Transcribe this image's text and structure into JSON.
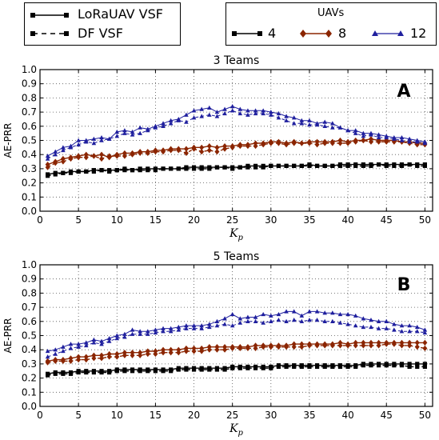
{
  "legend_styles": {
    "entries": [
      {
        "label": "LoRaUAV VSF",
        "dash": "solid"
      },
      {
        "label": "DF VSF",
        "dash": "dashed"
      }
    ]
  },
  "legend_uavs": {
    "title": "UAVs",
    "entries": [
      {
        "label": "4",
        "color": "#000000",
        "marker": "square"
      },
      {
        "label": "8",
        "color": "#8B2500",
        "marker": "diamond"
      },
      {
        "label": "12",
        "color": "#1f1f9e",
        "marker": "triangle"
      }
    ]
  },
  "chart_data": [
    {
      "type": "line",
      "title": "3 Teams",
      "panel_label": "A",
      "xlabel": "K_p",
      "ylabel": "AE-PRR",
      "xlim": [
        0,
        51
      ],
      "ylim": [
        0,
        1.0
      ],
      "xticks": [
        0,
        5,
        10,
        15,
        20,
        25,
        30,
        35,
        40,
        45,
        50
      ],
      "yticks": [
        0.0,
        0.1,
        0.2,
        0.3,
        0.4,
        0.5,
        0.6,
        0.7,
        0.8,
        0.9,
        1.0
      ],
      "grid": true,
      "x": [
        1,
        2,
        3,
        4,
        5,
        6,
        7,
        8,
        9,
        10,
        11,
        12,
        13,
        14,
        15,
        16,
        17,
        18,
        19,
        20,
        21,
        22,
        23,
        24,
        25,
        26,
        27,
        28,
        29,
        30,
        31,
        32,
        33,
        34,
        35,
        36,
        37,
        38,
        39,
        40,
        41,
        42,
        43,
        44,
        45,
        46,
        47,
        48,
        49,
        50
      ],
      "series": [
        {
          "uavs": "4",
          "style": "LoRaUAV VSF",
          "color": "#000000",
          "marker": "square",
          "values": [
            0.26,
            0.27,
            0.27,
            0.28,
            0.28,
            0.28,
            0.29,
            0.29,
            0.29,
            0.29,
            0.3,
            0.29,
            0.3,
            0.3,
            0.3,
            0.3,
            0.3,
            0.3,
            0.31,
            0.31,
            0.31,
            0.31,
            0.31,
            0.31,
            0.31,
            0.31,
            0.32,
            0.32,
            0.32,
            0.32,
            0.32,
            0.32,
            0.32,
            0.32,
            0.33,
            0.32,
            0.32,
            0.32,
            0.33,
            0.33,
            0.33,
            0.33,
            0.33,
            0.33,
            0.33,
            0.33,
            0.33,
            0.33,
            0.33,
            0.33
          ]
        },
        {
          "uavs": "4",
          "style": "DF VSF",
          "color": "#000000",
          "marker": "square",
          "values": [
            0.25,
            0.26,
            0.27,
            0.27,
            0.28,
            0.28,
            0.28,
            0.29,
            0.28,
            0.29,
            0.29,
            0.29,
            0.29,
            0.29,
            0.29,
            0.3,
            0.3,
            0.3,
            0.3,
            0.3,
            0.3,
            0.3,
            0.31,
            0.31,
            0.3,
            0.31,
            0.31,
            0.31,
            0.31,
            0.32,
            0.32,
            0.32,
            0.32,
            0.32,
            0.32,
            0.32,
            0.32,
            0.32,
            0.32,
            0.32,
            0.32,
            0.32,
            0.32,
            0.33,
            0.32,
            0.32,
            0.32,
            0.33,
            0.32,
            0.32
          ]
        },
        {
          "uavs": "8",
          "style": "LoRaUAV VSF",
          "color": "#8B2500",
          "marker": "diamond",
          "values": [
            0.33,
            0.35,
            0.37,
            0.38,
            0.39,
            0.4,
            0.39,
            0.4,
            0.38,
            0.4,
            0.41,
            0.41,
            0.42,
            0.42,
            0.43,
            0.43,
            0.44,
            0.44,
            0.44,
            0.45,
            0.45,
            0.46,
            0.45,
            0.46,
            0.46,
            0.47,
            0.47,
            0.48,
            0.48,
            0.49,
            0.49,
            0.48,
            0.49,
            0.48,
            0.49,
            0.49,
            0.49,
            0.49,
            0.5,
            0.49,
            0.5,
            0.5,
            0.51,
            0.5,
            0.5,
            0.5,
            0.49,
            0.49,
            0.48,
            0.48
          ]
        },
        {
          "uavs": "8",
          "style": "DF VSF",
          "color": "#8B2500",
          "marker": "diamond",
          "values": [
            0.31,
            0.34,
            0.35,
            0.37,
            0.38,
            0.38,
            0.39,
            0.37,
            0.39,
            0.39,
            0.39,
            0.4,
            0.41,
            0.41,
            0.42,
            0.42,
            0.43,
            0.43,
            0.41,
            0.44,
            0.42,
            0.43,
            0.42,
            0.44,
            0.45,
            0.46,
            0.46,
            0.46,
            0.47,
            0.48,
            0.48,
            0.47,
            0.48,
            0.48,
            0.48,
            0.47,
            0.48,
            0.48,
            0.48,
            0.48,
            0.49,
            0.5,
            0.49,
            0.49,
            0.49,
            0.49,
            0.49,
            0.48,
            0.47,
            0.47
          ]
        },
        {
          "uavs": "12",
          "style": "LoRaUAV VSF",
          "color": "#1f1f9e",
          "marker": "triangle",
          "values": [
            0.39,
            0.42,
            0.45,
            0.46,
            0.5,
            0.5,
            0.51,
            0.52,
            0.51,
            0.56,
            0.57,
            0.56,
            0.59,
            0.58,
            0.6,
            0.62,
            0.64,
            0.65,
            0.68,
            0.71,
            0.72,
            0.73,
            0.7,
            0.72,
            0.74,
            0.72,
            0.71,
            0.71,
            0.71,
            0.7,
            0.69,
            0.67,
            0.66,
            0.64,
            0.64,
            0.62,
            0.63,
            0.62,
            0.59,
            0.57,
            0.57,
            0.55,
            0.55,
            0.54,
            0.53,
            0.52,
            0.52,
            0.51,
            0.5,
            0.49
          ]
        },
        {
          "uavs": "12",
          "style": "DF VSF",
          "color": "#1f1f9e",
          "marker": "triangle",
          "values": [
            0.37,
            0.4,
            0.43,
            0.45,
            0.47,
            0.49,
            0.48,
            0.5,
            0.51,
            0.53,
            0.55,
            0.54,
            0.55,
            0.57,
            0.59,
            0.6,
            0.62,
            0.64,
            0.63,
            0.66,
            0.67,
            0.68,
            0.67,
            0.69,
            0.71,
            0.69,
            0.68,
            0.69,
            0.69,
            0.68,
            0.66,
            0.64,
            0.62,
            0.62,
            0.61,
            0.61,
            0.6,
            0.59,
            0.59,
            0.57,
            0.55,
            0.53,
            0.54,
            0.52,
            0.52,
            0.51,
            0.5,
            0.49,
            0.49,
            0.48
          ]
        }
      ]
    },
    {
      "type": "line",
      "title": "5 Teams",
      "panel_label": "B",
      "xlabel": "K_p",
      "ylabel": "AE-PRR",
      "xlim": [
        0,
        51
      ],
      "ylim": [
        0,
        1.0
      ],
      "xticks": [
        0,
        5,
        10,
        15,
        20,
        25,
        30,
        35,
        40,
        45,
        50
      ],
      "yticks": [
        0.0,
        0.1,
        0.2,
        0.3,
        0.4,
        0.5,
        0.6,
        0.7,
        0.8,
        0.9,
        1.0
      ],
      "grid": true,
      "x": [
        1,
        2,
        3,
        4,
        5,
        6,
        7,
        8,
        9,
        10,
        11,
        12,
        13,
        14,
        15,
        16,
        17,
        18,
        19,
        20,
        21,
        22,
        23,
        24,
        25,
        26,
        27,
        28,
        29,
        30,
        31,
        32,
        33,
        34,
        35,
        36,
        37,
        38,
        39,
        40,
        41,
        42,
        43,
        44,
        45,
        46,
        47,
        48,
        49,
        50
      ],
      "series": [
        {
          "uavs": "4",
          "style": "LoRaUAV VSF",
          "color": "#000000",
          "marker": "square",
          "values": [
            0.23,
            0.24,
            0.24,
            0.24,
            0.25,
            0.25,
            0.25,
            0.25,
            0.25,
            0.26,
            0.26,
            0.26,
            0.26,
            0.26,
            0.26,
            0.26,
            0.26,
            0.27,
            0.27,
            0.27,
            0.27,
            0.27,
            0.27,
            0.27,
            0.28,
            0.28,
            0.28,
            0.28,
            0.28,
            0.28,
            0.29,
            0.29,
            0.29,
            0.29,
            0.29,
            0.29,
            0.29,
            0.29,
            0.29,
            0.29,
            0.29,
            0.3,
            0.3,
            0.3,
            0.3,
            0.3,
            0.3,
            0.3,
            0.3,
            0.3
          ]
        },
        {
          "uavs": "4",
          "style": "DF VSF",
          "color": "#000000",
          "marker": "square",
          "values": [
            0.22,
            0.23,
            0.23,
            0.23,
            0.24,
            0.24,
            0.24,
            0.24,
            0.24,
            0.25,
            0.25,
            0.25,
            0.25,
            0.25,
            0.25,
            0.25,
            0.25,
            0.26,
            0.26,
            0.26,
            0.26,
            0.26,
            0.26,
            0.26,
            0.27,
            0.27,
            0.27,
            0.27,
            0.27,
            0.27,
            0.28,
            0.28,
            0.28,
            0.28,
            0.28,
            0.28,
            0.28,
            0.28,
            0.28,
            0.28,
            0.28,
            0.29,
            0.29,
            0.29,
            0.29,
            0.29,
            0.29,
            0.28,
            0.28,
            0.28
          ]
        },
        {
          "uavs": "8",
          "style": "LoRaUAV VSF",
          "color": "#8B2500",
          "marker": "diamond",
          "values": [
            0.32,
            0.33,
            0.33,
            0.34,
            0.35,
            0.35,
            0.36,
            0.36,
            0.37,
            0.37,
            0.38,
            0.38,
            0.38,
            0.39,
            0.39,
            0.4,
            0.4,
            0.4,
            0.41,
            0.41,
            0.41,
            0.42,
            0.42,
            0.42,
            0.42,
            0.42,
            0.42,
            0.43,
            0.43,
            0.43,
            0.43,
            0.43,
            0.44,
            0.44,
            0.44,
            0.44,
            0.44,
            0.44,
            0.45,
            0.44,
            0.45,
            0.45,
            0.45,
            0.45,
            0.45,
            0.45,
            0.45,
            0.45,
            0.45,
            0.45
          ]
        },
        {
          "uavs": "8",
          "style": "DF VSF",
          "color": "#8B2500",
          "marker": "diamond",
          "values": [
            0.31,
            0.32,
            0.32,
            0.32,
            0.33,
            0.33,
            0.34,
            0.34,
            0.35,
            0.35,
            0.36,
            0.36,
            0.36,
            0.37,
            0.37,
            0.38,
            0.38,
            0.38,
            0.39,
            0.39,
            0.39,
            0.4,
            0.4,
            0.4,
            0.41,
            0.41,
            0.41,
            0.41,
            0.42,
            0.42,
            0.42,
            0.42,
            0.42,
            0.42,
            0.43,
            0.43,
            0.43,
            0.43,
            0.43,
            0.43,
            0.43,
            0.43,
            0.43,
            0.43,
            0.44,
            0.44,
            0.43,
            0.43,
            0.42,
            0.41
          ]
        },
        {
          "uavs": "12",
          "style": "LoRaUAV VSF",
          "color": "#1f1f9e",
          "marker": "triangle",
          "values": [
            0.39,
            0.4,
            0.42,
            0.44,
            0.44,
            0.45,
            0.47,
            0.46,
            0.48,
            0.5,
            0.51,
            0.54,
            0.53,
            0.53,
            0.54,
            0.55,
            0.55,
            0.56,
            0.57,
            0.57,
            0.57,
            0.58,
            0.6,
            0.62,
            0.65,
            0.62,
            0.63,
            0.63,
            0.65,
            0.64,
            0.65,
            0.67,
            0.67,
            0.64,
            0.67,
            0.67,
            0.66,
            0.66,
            0.65,
            0.65,
            0.64,
            0.62,
            0.61,
            0.6,
            0.6,
            0.58,
            0.57,
            0.57,
            0.56,
            0.54
          ]
        },
        {
          "uavs": "12",
          "style": "DF VSF",
          "color": "#1f1f9e",
          "marker": "triangle",
          "values": [
            0.35,
            0.37,
            0.39,
            0.41,
            0.42,
            0.43,
            0.45,
            0.44,
            0.46,
            0.48,
            0.49,
            0.51,
            0.51,
            0.51,
            0.52,
            0.53,
            0.53,
            0.54,
            0.55,
            0.55,
            0.55,
            0.56,
            0.57,
            0.58,
            0.57,
            0.59,
            0.6,
            0.6,
            0.59,
            0.6,
            0.61,
            0.6,
            0.61,
            0.6,
            0.61,
            0.61,
            0.6,
            0.6,
            0.59,
            0.58,
            0.57,
            0.56,
            0.56,
            0.55,
            0.55,
            0.54,
            0.53,
            0.53,
            0.53,
            0.52
          ]
        }
      ]
    }
  ]
}
